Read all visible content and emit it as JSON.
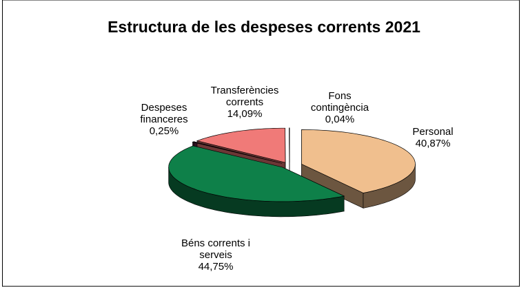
{
  "chart_data": {
    "type": "pie",
    "title": "Estructura de les despeses corrents 2021",
    "categories": [
      "Personal",
      "Béns corrents i serveis",
      "Despeses financeres",
      "Transferències corrents",
      "Fons contingència"
    ],
    "values": [
      40.87,
      44.75,
      0.25,
      14.09,
      0.04
    ],
    "value_labels": [
      "40,87%",
      "44,75%",
      "0,25%",
      "14,09%",
      "0,04%"
    ],
    "colors": [
      "#f0bf8e",
      "#0e8049",
      "#6a2748",
      "#f07a78",
      "#ffffff"
    ]
  }
}
